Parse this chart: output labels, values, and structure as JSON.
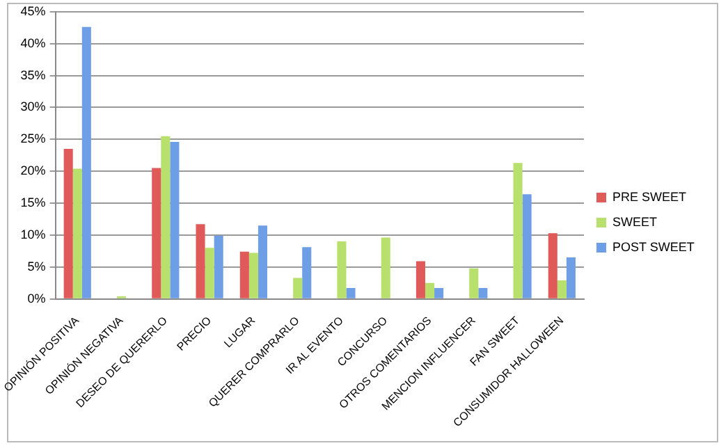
{
  "chart_data": {
    "type": "bar",
    "categories": [
      "OPINIÓN POSITIVA",
      "OPINIÓN NEGATIVA",
      "DESEO DE QUERERLO",
      "PRECIO",
      "LUGAR",
      "QUERER COMPRARLO",
      "IR AL EVENTO",
      "CONCURSO",
      "OTROS COMENTARIOS",
      "MENCION INFLUENCER",
      "FAN SWEET",
      "CONSUMIDOR HALLOWEEN"
    ],
    "series": [
      {
        "name": "PRE SWEET",
        "color": "#e05a5a",
        "values": [
          23.5,
          null,
          20.5,
          11.7,
          7.4,
          null,
          null,
          null,
          5.9,
          null,
          null,
          10.3
        ]
      },
      {
        "name": "SWEET",
        "color": "#b8e06c",
        "values": [
          20.4,
          0.4,
          25.5,
          8.0,
          7.2,
          3.3,
          9.0,
          9.6,
          2.5,
          4.8,
          21.3,
          2.9
        ]
      },
      {
        "name": "POST SWEET",
        "color": "#6e9fe6",
        "values": [
          42.6,
          null,
          24.6,
          9.9,
          11.5,
          8.1,
          1.7,
          null,
          1.7,
          1.7,
          16.4,
          6.5
        ]
      }
    ],
    "ylim": [
      0,
      45
    ],
    "yticks": [
      {
        "value": 0,
        "label": "0%"
      },
      {
        "value": 5,
        "label": "5%"
      },
      {
        "value": 10,
        "label": "10%"
      },
      {
        "value": 15,
        "label": "15%"
      },
      {
        "value": 20,
        "label": "20%"
      },
      {
        "value": 25,
        "label": "25%"
      },
      {
        "value": 30,
        "label": "30%"
      },
      {
        "value": 35,
        "label": "35%"
      },
      {
        "value": 40,
        "label": "40%"
      },
      {
        "value": 45,
        "label": "45%"
      }
    ],
    "grid": "y",
    "legend": "right"
  }
}
